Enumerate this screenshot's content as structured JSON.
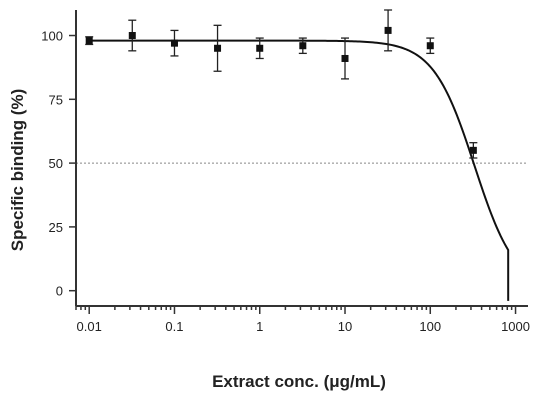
{
  "chart_data": {
    "type": "scatter",
    "xlabel": "Extract conc. (μg/mL)",
    "ylabel": "Specific binding (%)",
    "xscale": "log",
    "xlim": [
      0.007,
      1400
    ],
    "ylim": [
      -6,
      110
    ],
    "x_ticks": [
      0.01,
      0.1,
      1,
      10,
      100,
      1000
    ],
    "x_tick_labels": [
      "0.01",
      "0.1",
      "1",
      "10",
      "100",
      "1000"
    ],
    "y_ticks": [
      0,
      25,
      50,
      75,
      100
    ],
    "y_tick_labels": [
      "0",
      "25",
      "50",
      "75",
      "100"
    ],
    "grid": false,
    "reference_line": {
      "y": 50,
      "style": "dotted"
    },
    "series": [
      {
        "x": [
          0.01,
          0.032,
          0.1,
          0.32,
          1,
          3.2,
          10,
          32,
          100,
          320
        ],
        "y": [
          98,
          100,
          97,
          95,
          95,
          96,
          91,
          102,
          96,
          55
        ],
        "error": [
          1.5,
          6,
          5,
          9,
          4,
          3,
          8,
          8,
          3,
          3
        ]
      }
    ],
    "fit": {
      "type": "sigmoid",
      "top": 98,
      "bottom": 0,
      "ic50": 330,
      "hill": 1.8,
      "x_max": 820
    }
  }
}
